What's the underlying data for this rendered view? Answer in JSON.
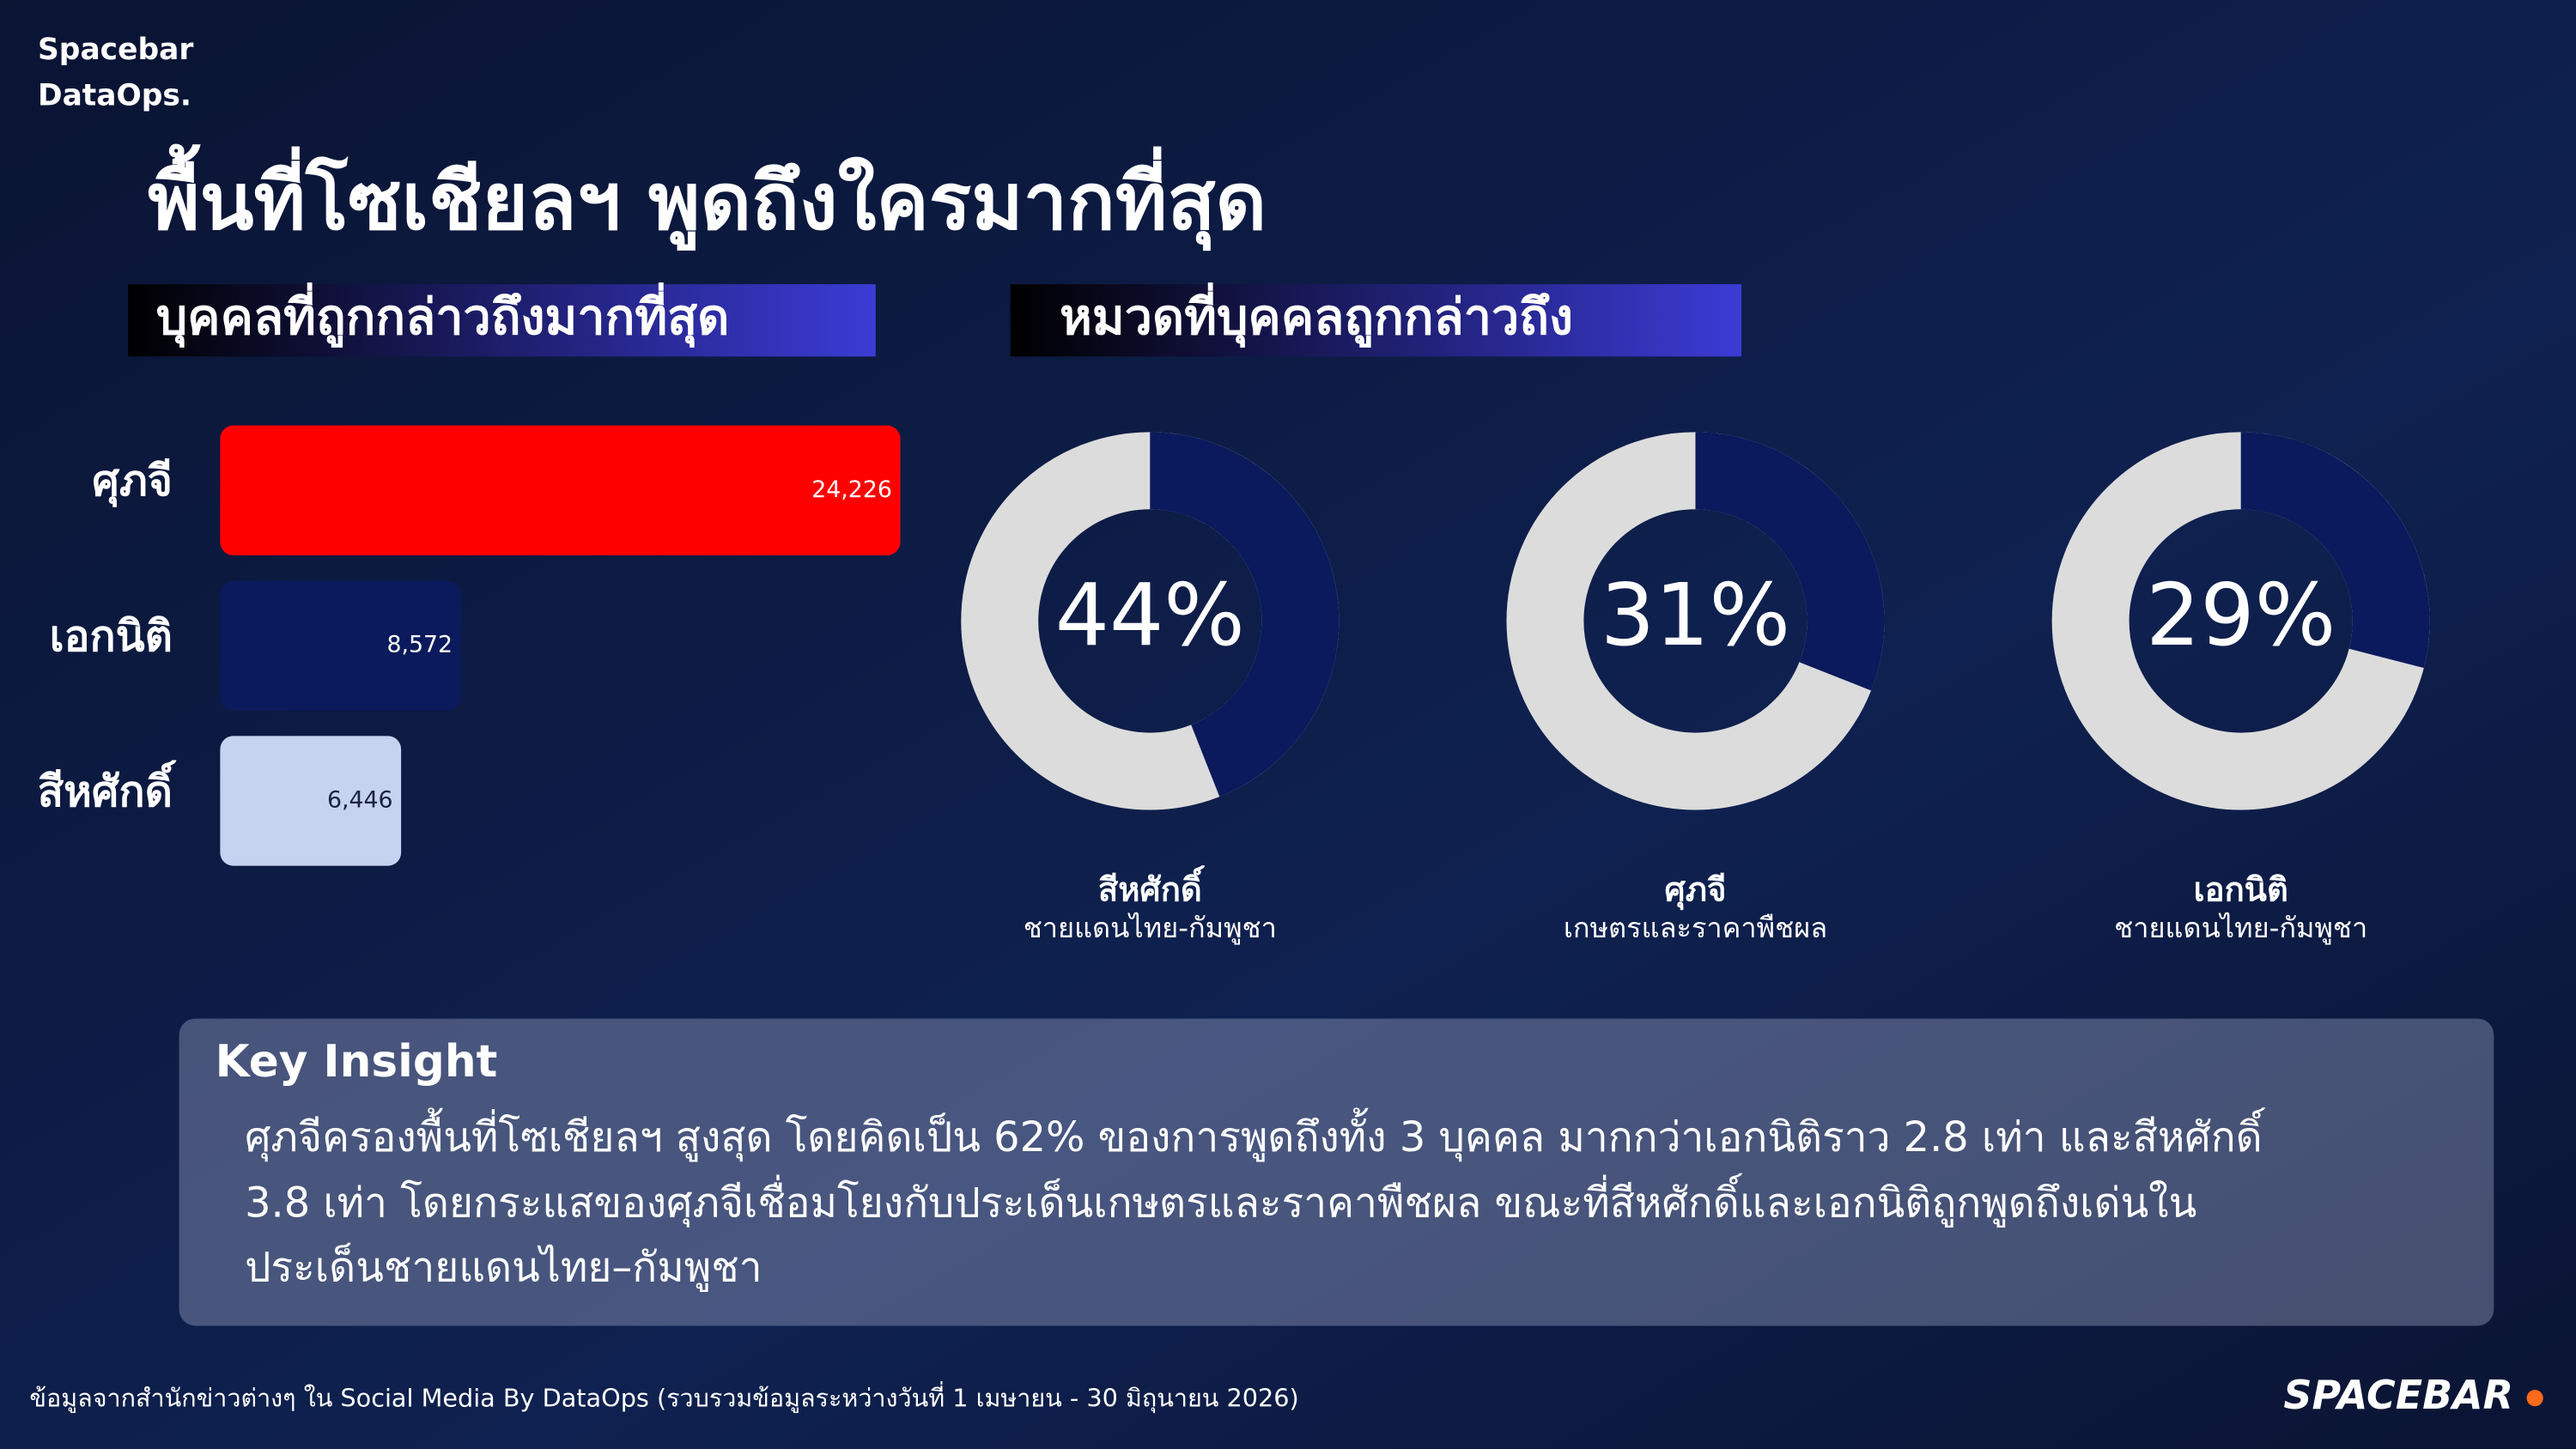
{
  "brand": {
    "line1": "Spacebar",
    "line2": "DataOps."
  },
  "title": "พื้นที่โซเชียลฯ พูดถึงใครมากที่สุด",
  "chart_data": [
    {
      "type": "bar",
      "orientation": "horizontal",
      "title": "บุคคลที่ถูกกล่าวถึงมากที่สุด",
      "categories": [
        "ศุภจี",
        "เอกนิติ",
        "สีหศักดิ์"
      ],
      "values": [
        24226,
        8572,
        6446
      ],
      "value_labels": [
        "24,226",
        "8,572",
        "6,446"
      ],
      "colors": [
        "#ff0000",
        "#0a1a5c",
        "#c5d3f0"
      ]
    },
    {
      "type": "donut",
      "section_title": "หมวดที่บุคคลถูกกล่าวถึง",
      "title": "สีหศักดิ์",
      "subtitle": "ชายแดนไทย-กัมพูชา",
      "values": [
        44
      ],
      "value_labels": [
        "44%"
      ],
      "color": "#0a1a5c"
    },
    {
      "type": "donut",
      "title": "ศุภจี",
      "subtitle": "เกษตรและราคาพืชผล",
      "values": [
        31
      ],
      "value_labels": [
        "31%"
      ],
      "color": "#0a1a5c"
    },
    {
      "type": "donut",
      "title": "เอกนิติ",
      "subtitle": "ชายแดนไทย-กัมพูชา",
      "values": [
        29
      ],
      "value_labels": [
        "29%"
      ],
      "color": "#0a1a5c"
    }
  ],
  "insight": {
    "title": "Key Insight",
    "lines": [
      "ศุภจีครองพื้นที่โซเชียลฯ สูงสุด โดยคิดเป็น 62% ของการพูดถึงทั้ง 3 บุคคล มากกว่าเอกนิติราว 2.8 เท่า และสีหศักดิ์",
      "3.8 เท่า โดยกระแสของศุภจีเชื่อมโยงกับประเด็นเกษตรและราคาพืชผล ขณะที่สีหศักดิ์และเอกนิติถูกพูดถึงเด่นใน",
      "ประเด็นชายแดนไทย–กัมพูชา"
    ]
  },
  "footer": {
    "source": "ข้อมูลจากสำนักข่าวต่างๆ ใน Social Media By DataOps (รวบรวมข้อมูลระหว่างวันที่ 1 เมษายน - 30 มิถุนายน 2026)",
    "logo": "SPACEBAR"
  }
}
